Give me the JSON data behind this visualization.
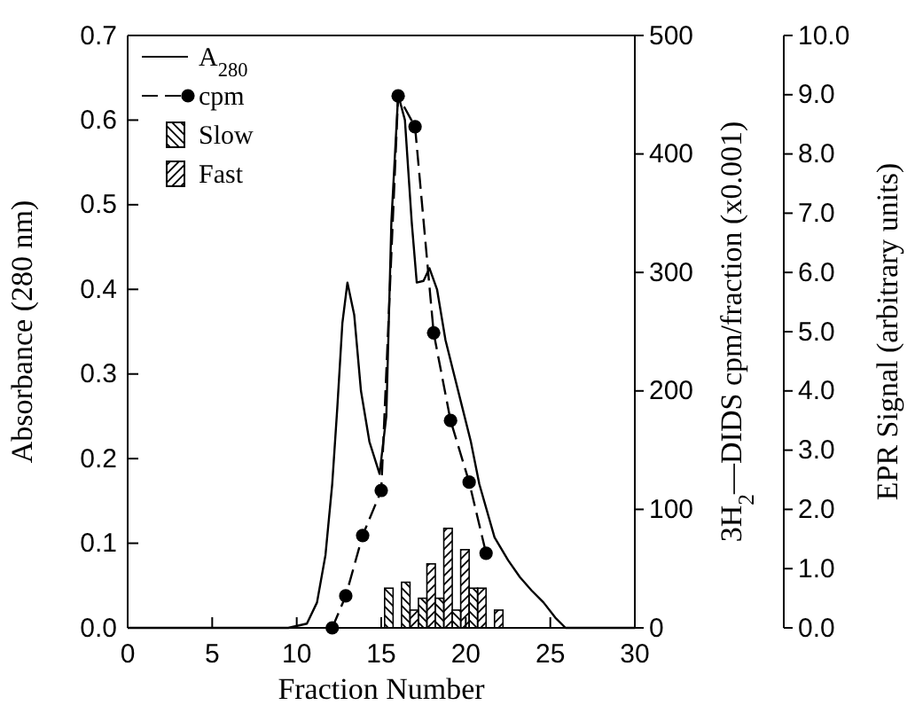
{
  "chart_data": {
    "type": "line",
    "xlabel": "Fraction Number",
    "ylabel": "Absorbance (280 nm)",
    "y2label": "3H$_{2}$—DIDS cpm/fraction (x0.001)",
    "y3label": "EPR Signal (arbitrary units)",
    "xlim": [
      0,
      30
    ],
    "xticks": [
      0,
      5,
      10,
      15,
      20,
      25,
      30
    ],
    "ylim": [
      0,
      0.7
    ],
    "yticks": [
      {
        "value": 0,
        "label": "0.0"
      },
      {
        "value": 0.1,
        "label": "0.1"
      },
      {
        "value": 0.2,
        "label": "0.2"
      },
      {
        "value": 0.3,
        "label": "0.3"
      },
      {
        "value": 0.4,
        "label": "0.4"
      },
      {
        "value": 0.5,
        "label": "0.5"
      },
      {
        "value": 0.6,
        "label": "0.6"
      },
      {
        "value": 0.7,
        "label": "0.7"
      }
    ],
    "y2lim": [
      0,
      500
    ],
    "y2ticks": [
      0,
      100,
      200,
      300,
      400,
      500
    ],
    "y3lim": [
      0,
      10
    ],
    "y3ticks": [
      {
        "value": 0,
        "label": "0.0"
      },
      {
        "value": 1,
        "label": "1.0"
      },
      {
        "value": 2,
        "label": "2.0"
      },
      {
        "value": 3,
        "label": "3.0"
      },
      {
        "value": 4,
        "label": "4.0"
      },
      {
        "value": 5,
        "label": "5.0"
      },
      {
        "value": 6,
        "label": "6.0"
      },
      {
        "value": 7,
        "label": "7.0"
      },
      {
        "value": 8,
        "label": "8.0"
      },
      {
        "value": 9,
        "label": "9.0"
      },
      {
        "value": 10,
        "label": "10.0"
      }
    ],
    "legend": "top left",
    "grid": false,
    "series": [
      {
        "name": "A$_{280}$",
        "type": "line",
        "color": "#000000",
        "marker": "none",
        "line_style": "solid",
        "x": [
          0,
          9.5,
          10.6,
          11.2,
          11.7,
          12.1,
          12.4,
          12.7,
          13.0,
          13.4,
          13.8,
          14.3,
          14.9,
          15.3,
          15.6,
          16.0,
          16.4,
          16.8,
          17.1,
          17.5,
          17.85,
          18.3,
          18.8,
          19.3,
          19.8,
          20.3,
          20.8,
          21.7,
          22.5,
          23.2,
          23.9,
          24.6,
          25.3,
          25.9,
          30
        ],
        "values": [
          0,
          0,
          0.005,
          0.03,
          0.086,
          0.17,
          0.26,
          0.36,
          0.408,
          0.37,
          0.28,
          0.22,
          0.182,
          0.25,
          0.48,
          0.63,
          0.6,
          0.48,
          0.408,
          0.41,
          0.425,
          0.4,
          0.34,
          0.3,
          0.26,
          0.22,
          0.17,
          0.107,
          0.08,
          0.06,
          0.044,
          0.03,
          0.012,
          0,
          0
        ]
      },
      {
        "name": "cpm",
        "type": "line",
        "axis": "y2",
        "color": "#000000",
        "marker": "circle",
        "line_style": "dashed",
        "x": [
          12.1,
          12.9,
          13.9,
          15.0,
          16.0,
          17.0,
          18.1,
          19.1,
          20.2,
          21.2
        ],
        "values": [
          0,
          27,
          78,
          116,
          449,
          423,
          249,
          175,
          123,
          63
        ]
      },
      {
        "name": "Slow",
        "type": "histogram",
        "axis": "y3",
        "color": "#000000",
        "bins": [
          15.2,
          16.2,
          17.2,
          18.2,
          19.2,
          20.2,
          21.2,
          22.2
        ],
        "values": [
          0.67,
          0.77,
          0.5,
          0.5,
          0.3,
          0.67,
          0
        ]
      },
      {
        "name": "Fast",
        "type": "histogram",
        "axis": "y3",
        "color": "#000000",
        "bins": [
          15.2,
          16.2,
          17.2,
          18.2,
          19.2,
          20.2,
          21.2,
          22.2
        ],
        "values": [
          0,
          0.3,
          1.08,
          1.68,
          1.32,
          0.67,
          0.3
        ]
      }
    ]
  }
}
